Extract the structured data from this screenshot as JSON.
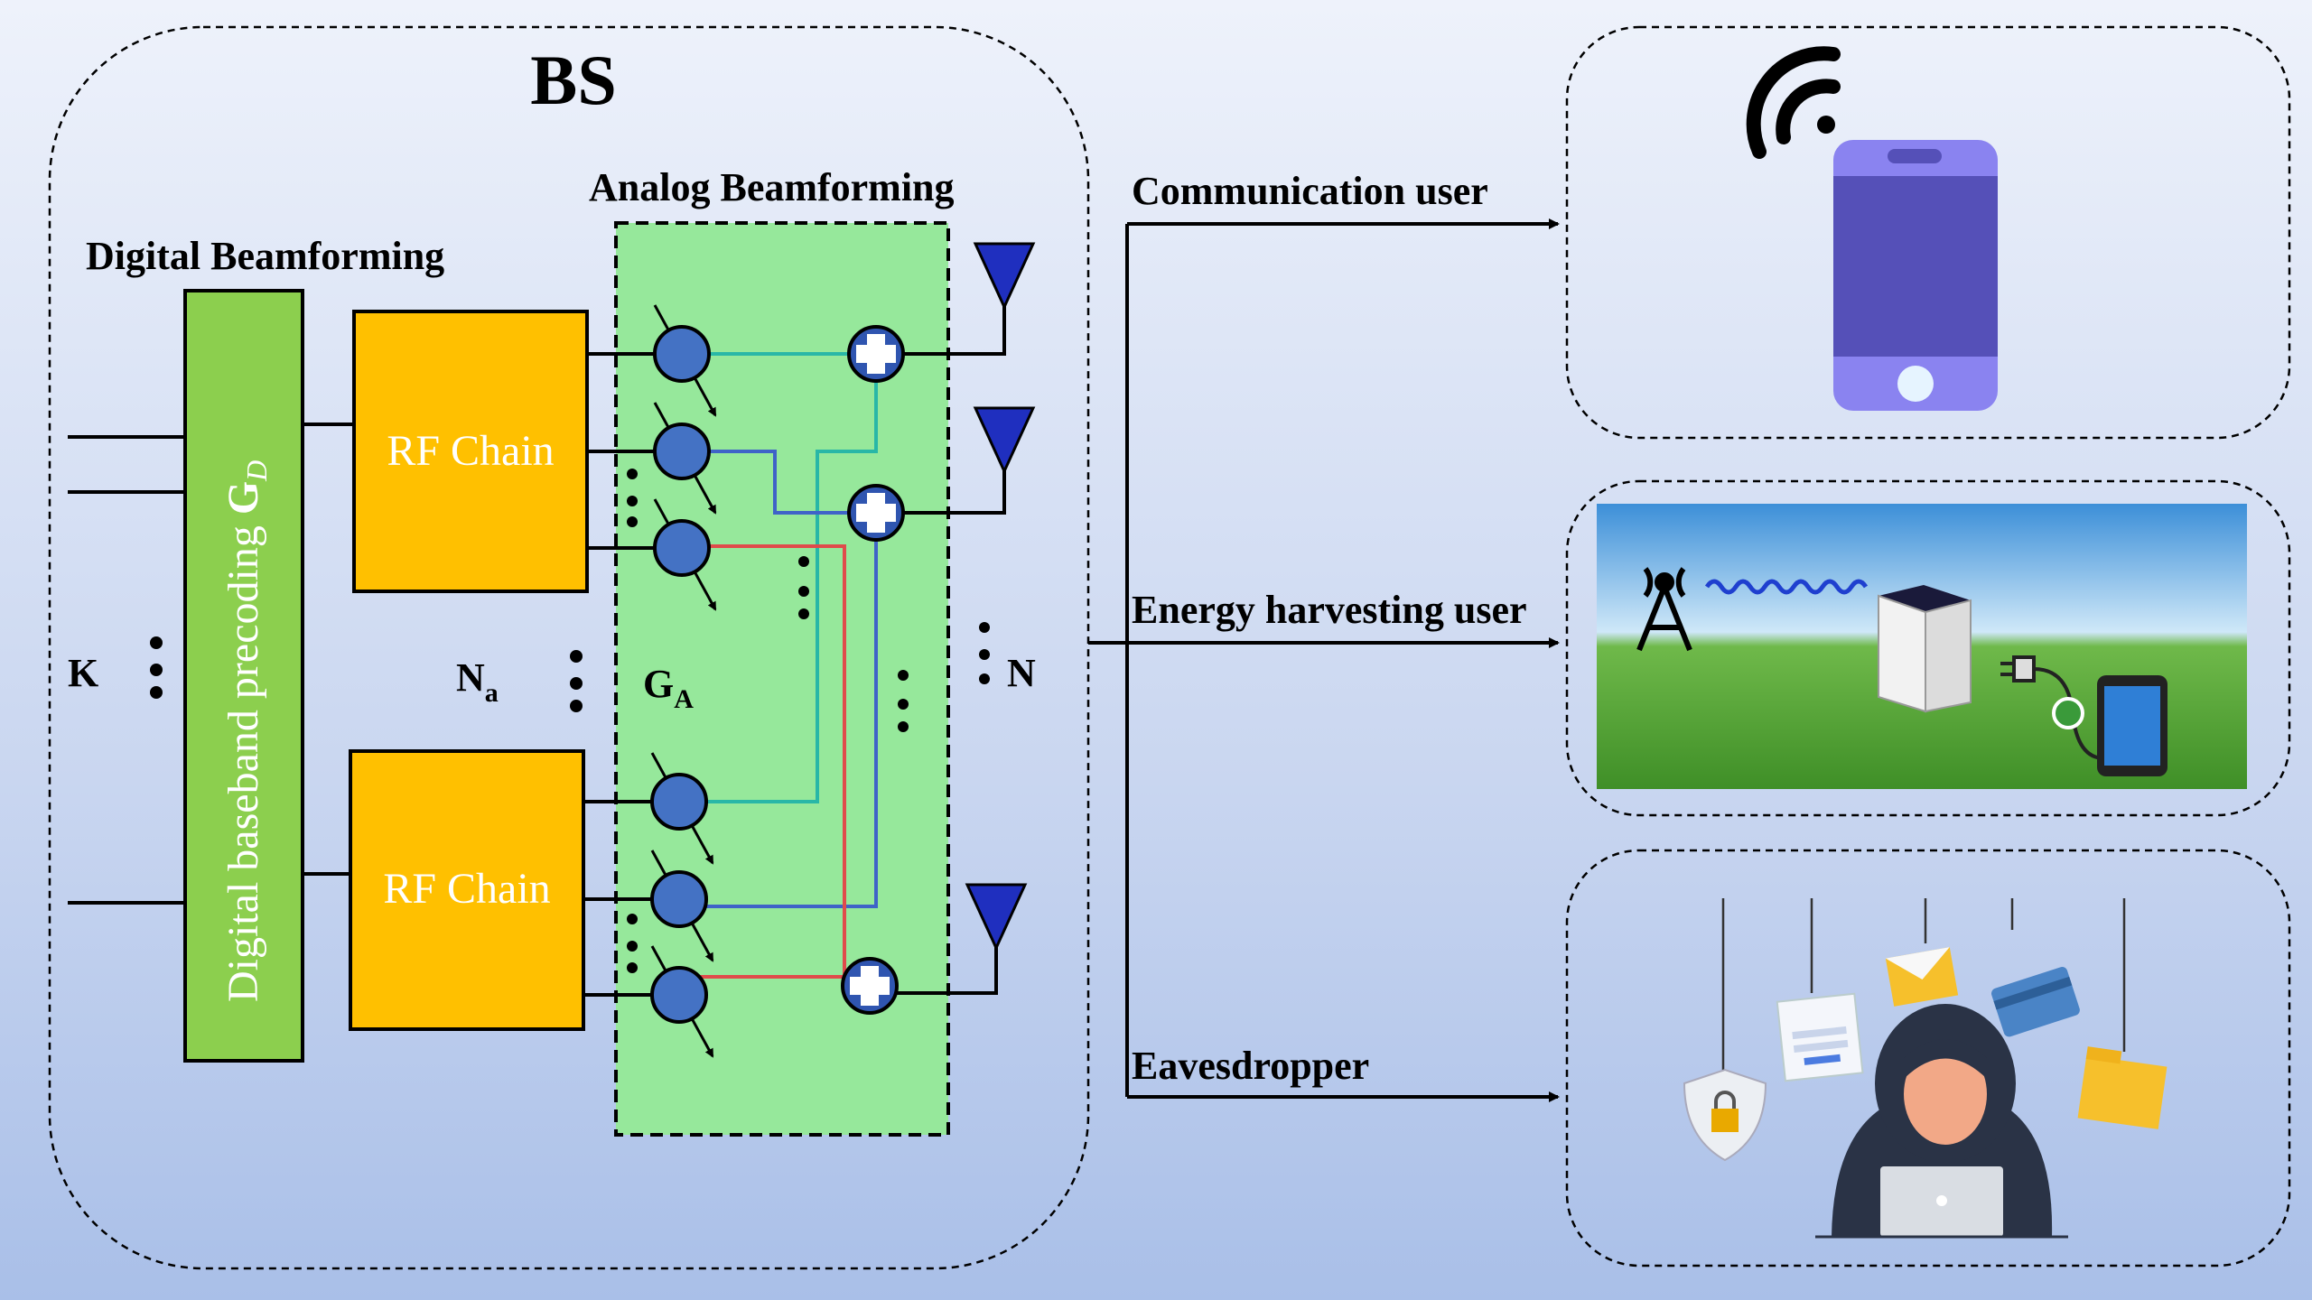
{
  "bs": {
    "title": "BS",
    "digital_label": "Digital Beamforming",
    "analog_label": "Analog Beamforming",
    "precoding_text": "Digital baseband precoding ",
    "precoding_symbol": "G",
    "precoding_sub": "D",
    "rf_chain_1": "RF Chain",
    "rf_chain_2": "RF Chain",
    "k_label": "K",
    "na_label": "N",
    "na_sub": "a",
    "ga_label": "G",
    "ga_sub": "A",
    "n_label": "N"
  },
  "users": {
    "communication": "Communication user",
    "energy": "Energy harvesting user",
    "eavesdropper": "Eavesdropper"
  },
  "colors": {
    "analog_box": "#96e89b",
    "digital_box": "#8ccf4e",
    "rf_chain": "#ffc000",
    "phase_shifter": "#4472c4",
    "antenna": "#1f2fbf",
    "line_teal": "#29b7a7",
    "line_blue": "#3f63c8",
    "line_red": "#e04b4b",
    "phone": "#5550b8"
  }
}
